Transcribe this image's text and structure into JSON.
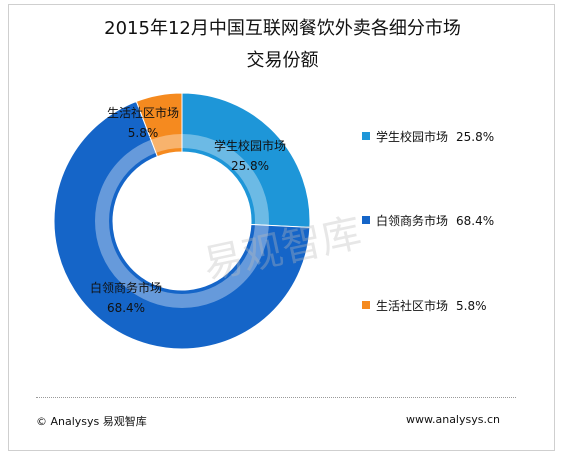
{
  "title_line1": "2015年12月中国互联网餐饮外卖各细分市场",
  "title_line2": "交易份额",
  "watermark": "易观智库",
  "chart_data": {
    "type": "pie",
    "variant": "donut",
    "slices": [
      {
        "name": "学生校园市场",
        "value": 25.8,
        "label": "25.8%",
        "color": "#1e96d8"
      },
      {
        "name": "白领商务市场",
        "value": 68.4,
        "label": "68.4%",
        "color": "#1565c8"
      },
      {
        "name": "生活社区市场",
        "value": 5.8,
        "label": "5.8%",
        "color": "#f58a1f"
      }
    ],
    "legend_position": "right"
  },
  "footer": {
    "left": "© Analysys 易观智库",
    "right": "www.analysys.cn"
  }
}
